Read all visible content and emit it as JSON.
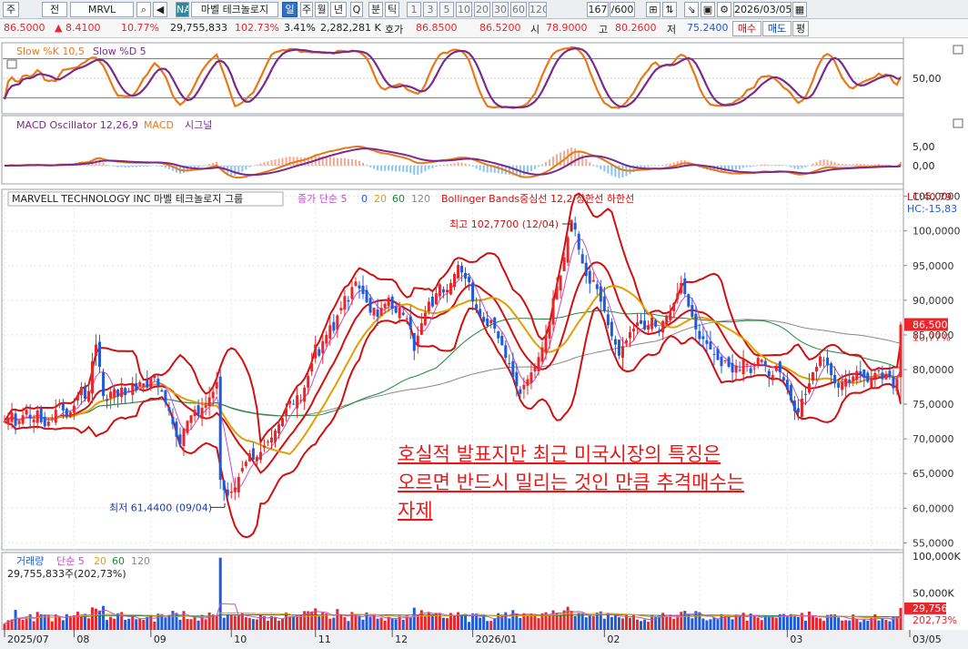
{
  "toolbar": {
    "items": [
      "주",
      "전",
      "MRVL",
      "NA",
      "마벨 테크놀로지",
      "일",
      "주",
      "월",
      "년",
      "Q",
      "분",
      "틱",
      "1",
      "3",
      "5",
      "10",
      "20",
      "30",
      "60",
      "120",
      "167",
      "/600",
      "2026/03/05"
    ]
  },
  "quote": {
    "price": "86.5000",
    "change": "▲ 8.4100",
    "change_pct": "10.77%",
    "volume": "29,755,833",
    "vol_ratio": "102.73%",
    "turnover": "3.41%",
    "amount": "2,282,281 K",
    "ask_label": "호가",
    "ask": "86.8500",
    "bid": "86.5200",
    "open_label": "시",
    "open": "78.9000",
    "high_label": "고",
    "high": "80.2600",
    "low_label": "저",
    "low": "75.2400",
    "buy": "매수",
    "sell": "매도",
    "eval": "평"
  },
  "colors": {
    "up": "#e8262b",
    "down": "#1f5bd8",
    "ma5": "#c050c8",
    "ma20": "#e0a000",
    "ma60": "#1a8a3a",
    "ma120": "#888888",
    "bb": "#d01010",
    "slowk": "#e87818",
    "slowd": "#7a2a8a"
  },
  "stoch": {
    "title_k": "Slow %K 10,5",
    "title_d": "Slow %D 5",
    "tick": "50,00"
  },
  "macd": {
    "title_osc": "MACD Oscillator 12,26,9",
    "title_macd": "MACD",
    "title_sig": "시그널",
    "ticks": [
      "5,00",
      "0,00"
    ]
  },
  "price_panel": {
    "title": "MARVELL TECHNOLOGY INC  마벨 테크놀로지 그룹",
    "ma_label": "종가 단순 5",
    "ma_nums": [
      "0",
      "20",
      "60",
      "120"
    ],
    "bb_label": "Bollinger Bands중심선 12,2  상한선  하한선",
    "lc": "LC:40,79",
    "hc": "HC:-15,83",
    "last_price": "86,5000",
    "last_pct": "10,77%",
    "yticks": [
      "105,0000",
      "100,0000",
      "95,0000",
      "90,0000",
      "85,0000",
      "80,0000",
      "75,0000",
      "70,0000",
      "65,0000",
      "60,0000",
      "55,0000"
    ],
    "max_label": "최고 102,7700 (12/04)",
    "min_label": "최저 61,4400 (09/04)",
    "annotation": [
      "호실적 발표지만 최근 미국시장의 특징은",
      "오르면 반드시 밀리는 것인 만큼 추격매수는",
      "자제"
    ]
  },
  "volume_panel": {
    "title": "거래량",
    "ma_label": "단순 5",
    "ma_nums": [
      "20",
      "60",
      "120"
    ],
    "info": "29,755,833주(202,73%)",
    "yticks": [
      "100,000K",
      "50,000K"
    ],
    "last_vol": "29,756K",
    "last_pct": "202,73%"
  },
  "xaxis": {
    "labels": [
      "2025/07",
      "08",
      "09",
      "10",
      "11",
      "12",
      "2026/01",
      "02",
      "03",
      "03/05"
    ]
  },
  "chart_data": {
    "type": "candlestick",
    "series": [
      {
        "name": "종가",
        "values": [
          72.5,
          73.1,
          73.8,
          71.9,
          72.6,
          73.4,
          74.2,
          73.0,
          72.8,
          74.1,
          72.4,
          71.8,
          72.5,
          73.0,
          74.2,
          75.0,
          74.1,
          73.2,
          73.9,
          74.8,
          76.3,
          77.5,
          75.8,
          76.9,
          81.2,
          83.6,
          80.4,
          76.2,
          75.5,
          76.8,
          77.2,
          76.1,
          77.4,
          76.3,
          76.9,
          77.8,
          77.0,
          78.2,
          78.0,
          77.4,
          78.8,
          79.1,
          77.6,
          76.8,
          75.2,
          74.0,
          72.1,
          70.3,
          69.2,
          71.5,
          72.6,
          73.4,
          74.2,
          73.5,
          74.5,
          74.8,
          76.0,
          76.8,
          78.2,
          64.1,
          62.6,
          61.8,
          62.4,
          63.0,
          64.5,
          65.8,
          66.7,
          67.9,
          67.0,
          67.4,
          68.1,
          69.0,
          69.6,
          70.2,
          71.2,
          72.1,
          73.0,
          74.4,
          75.5,
          75.0,
          76.3,
          75.6,
          77.4,
          79.1,
          80.9,
          83.6,
          82.0,
          84.1,
          85.0,
          86.4,
          85.6,
          87.8,
          88.9,
          90.6,
          89.8,
          91.9,
          92.7,
          91.7,
          90.9,
          89.7,
          88.2,
          88.9,
          87.6,
          88.9,
          89.5,
          90.4,
          88.8,
          88.2,
          89.0,
          87.9,
          87.4,
          85.8,
          82.7,
          84.9,
          86.7,
          88.2,
          89.8,
          89.1,
          91.0,
          92.3,
          91.1,
          91.5,
          92.5,
          93.8,
          95.1,
          94.0,
          93.1,
          92.6,
          89.8,
          88.8,
          87.6,
          86.9,
          86.3,
          87.1,
          85.9,
          84.5,
          83.5,
          81.7,
          80.9,
          78.9,
          77.6,
          76.5,
          77.8,
          78.6,
          79.6,
          80.4,
          81.8,
          83.2,
          84.9,
          86.9,
          90.3,
          92.0,
          93.6,
          96.2,
          99.1,
          101.6,
          100.2,
          97.3,
          95.3,
          93.5,
          92.4,
          92.9,
          91.6,
          89.8,
          88.5,
          86.4,
          84.8,
          83.6,
          82.0,
          83.4,
          84.2,
          85.4,
          85.9,
          86.8,
          86.6,
          85.8,
          86.4,
          87.5,
          86.2,
          85.6,
          87.0,
          87.8,
          88.4,
          89.6,
          91.0,
          92.5,
          90.9,
          89.1,
          87.6,
          85.8,
          84.4,
          84.4,
          83.7,
          82.9,
          82.2,
          81.4,
          80.5,
          81.3,
          80.4,
          79.6,
          80.6,
          79.9,
          81.5,
          80.8,
          79.5,
          80.2,
          81.7,
          81.4,
          80.6,
          79.0,
          79.2,
          80.4,
          79.6,
          78.4,
          77.1,
          75.5,
          74.0,
          73.8,
          75.8,
          76.4,
          78.0,
          79.6,
          80.4,
          81.9,
          81.4,
          80.6,
          79.2,
          78.0,
          77.4,
          78.2,
          78.7,
          78.1,
          79.0,
          79.8,
          79.3,
          78.8,
          78.2,
          78.8,
          79.5,
          79.9,
          78.6,
          79.4,
          78.9,
          77.3,
          78.6,
          86.5
        ]
      },
      {
        "name": "MA5",
        "values": []
      },
      {
        "name": "MA20",
        "values": []
      },
      {
        "name": "MA60",
        "values": []
      },
      {
        "name": "MA120",
        "values": []
      }
    ],
    "ylim": [
      54,
      106
    ]
  }
}
